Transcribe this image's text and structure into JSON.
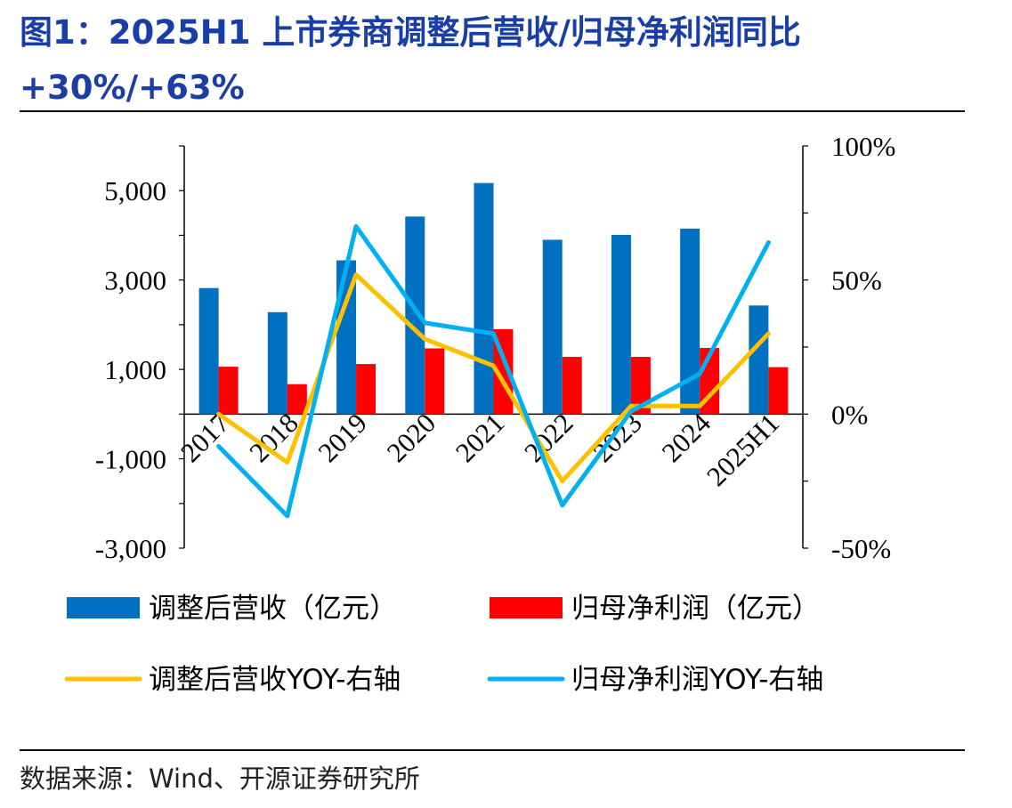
{
  "header": {
    "title_line1": "图1：2025H1 上市券商调整后营收/归母净利润同比",
    "title_line2": "+30%/+63%"
  },
  "footer": {
    "source": "数据来源：Wind、开源证券研究所"
  },
  "chart_data": {
    "type": "bar+line",
    "categories": [
      "2017",
      "2018",
      "2019",
      "2020",
      "2021",
      "2022",
      "2023",
      "2024",
      "2025H1"
    ],
    "series": [
      {
        "name": "调整后营收（亿元）",
        "kind": "bar",
        "axis": "left",
        "color": "#0070c0",
        "values": [
          2820,
          2280,
          3440,
          4420,
          5170,
          3900,
          4010,
          4150,
          2430
        ]
      },
      {
        "name": "归母净利润（亿元）",
        "kind": "bar",
        "axis": "left",
        "color": "#ff0000",
        "values": [
          1060,
          670,
          1120,
          1470,
          1900,
          1280,
          1280,
          1480,
          1050
        ]
      },
      {
        "name": "调整后营收YOY-右轴",
        "kind": "line",
        "axis": "right",
        "color": "#ffc000",
        "values": [
          0,
          -18,
          52,
          28,
          18,
          -25,
          3,
          3,
          30
        ]
      },
      {
        "name": "归母净利润YOY-右轴",
        "kind": "line",
        "axis": "right",
        "color": "#00b0f0",
        "values": [
          -12,
          -38,
          70,
          34,
          30,
          -34,
          1,
          15,
          64
        ]
      }
    ],
    "y_left": {
      "min": -3000,
      "max": 6000,
      "ticks": [
        "5,000",
        "3,000",
        "1,000",
        "-1,000",
        "-3,000"
      ],
      "tick_values": [
        5000,
        3000,
        1000,
        -1000,
        -3000
      ]
    },
    "y_right": {
      "min": -50,
      "max": 100,
      "ticks": [
        "100%",
        "50%",
        "0%",
        "-50%"
      ],
      "tick_values": [
        100,
        50,
        0,
        -50
      ]
    },
    "legend_position": "bottom",
    "grid": false
  }
}
